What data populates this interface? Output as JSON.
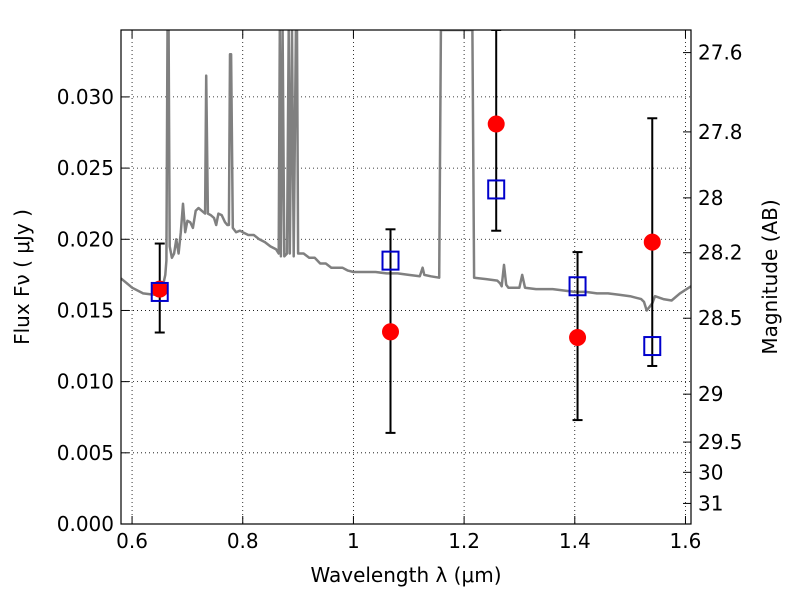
{
  "chart_data": {
    "type": "scatter",
    "xlabel": "Wavelength  λ (μm)",
    "ylabel_left": "Flux  Fν  ( μJy )",
    "ylabel_right": "Magnitude (AB)",
    "xlim": [
      0.58,
      1.61
    ],
    "ylim": [
      0.0,
      0.0347
    ],
    "grid": true,
    "x_ticks": [
      {
        "value": 0.6,
        "label": "0.6"
      },
      {
        "value": 0.8,
        "label": "0.8"
      },
      {
        "value": 1.0,
        "label": "1"
      },
      {
        "value": 1.2,
        "label": "1.2"
      },
      {
        "value": 1.4,
        "label": "1.4"
      },
      {
        "value": 1.6,
        "label": "1.6"
      }
    ],
    "y_ticks": [
      {
        "value": 0.0,
        "label": "0.000"
      },
      {
        "value": 0.005,
        "label": "0.005"
      },
      {
        "value": 0.01,
        "label": "0.010"
      },
      {
        "value": 0.015,
        "label": "0.015"
      },
      {
        "value": 0.02,
        "label": "0.020"
      },
      {
        "value": 0.025,
        "label": "0.025"
      },
      {
        "value": 0.03,
        "label": "0.030"
      }
    ],
    "y2_ticks": [
      {
        "value": 27.6,
        "label": "27.6"
      },
      {
        "value": 27.8,
        "label": "27.8"
      },
      {
        "value": 28.0,
        "label": "28"
      },
      {
        "value": 28.2,
        "label": "28.2"
      },
      {
        "value": 28.5,
        "label": "28.5"
      },
      {
        "value": 29.0,
        "label": "29"
      },
      {
        "value": 29.5,
        "label": "29.5"
      },
      {
        "value": 30.0,
        "label": "30"
      },
      {
        "value": 31.0,
        "label": "31"
      }
    ],
    "series": [
      {
        "type": "line",
        "color": "#808080",
        "points": [
          [
            0.58,
            0.01725
          ],
          [
            0.6,
            0.0166
          ],
          [
            0.62,
            0.0162
          ],
          [
            0.64,
            0.0161
          ],
          [
            0.65,
            0.0163
          ],
          [
            0.655,
            0.0166
          ],
          [
            0.66,
            0.0175
          ],
          [
            0.662,
            0.0185
          ],
          [
            0.664,
            0.0347
          ],
          [
            0.666,
            0.0347
          ],
          [
            0.668,
            0.0195
          ],
          [
            0.672,
            0.0187
          ],
          [
            0.676,
            0.019
          ],
          [
            0.68,
            0.02
          ],
          [
            0.684,
            0.019
          ],
          [
            0.688,
            0.0205
          ],
          [
            0.692,
            0.0225
          ],
          [
            0.696,
            0.0205
          ],
          [
            0.7,
            0.0213
          ],
          [
            0.705,
            0.0212
          ],
          [
            0.71,
            0.0208
          ],
          [
            0.715,
            0.022
          ],
          [
            0.72,
            0.0222
          ],
          [
            0.726,
            0.022
          ],
          [
            0.732,
            0.0218
          ],
          [
            0.734,
            0.0315
          ],
          [
            0.737,
            0.0218
          ],
          [
            0.742,
            0.0217
          ],
          [
            0.748,
            0.0215
          ],
          [
            0.752,
            0.021
          ],
          [
            0.756,
            0.0218
          ],
          [
            0.762,
            0.0217
          ],
          [
            0.768,
            0.0212
          ],
          [
            0.772,
            0.021
          ],
          [
            0.775,
            0.021
          ],
          [
            0.777,
            0.033
          ],
          [
            0.779,
            0.033
          ],
          [
            0.782,
            0.0208
          ],
          [
            0.788,
            0.0205
          ],
          [
            0.795,
            0.0206
          ],
          [
            0.8,
            0.0205
          ],
          [
            0.81,
            0.0203
          ],
          [
            0.82,
            0.0203
          ],
          [
            0.83,
            0.02
          ],
          [
            0.84,
            0.0198
          ],
          [
            0.85,
            0.0195
          ],
          [
            0.86,
            0.0193
          ],
          [
            0.865,
            0.019
          ],
          [
            0.867,
            0.0347
          ],
          [
            0.869,
            0.0188
          ],
          [
            0.872,
            0.0347
          ],
          [
            0.875,
            0.0188
          ],
          [
            0.88,
            0.019
          ],
          [
            0.883,
            0.0347
          ],
          [
            0.885,
            0.019
          ],
          [
            0.889,
            0.0347
          ],
          [
            0.892,
            0.0188
          ],
          [
            0.896,
            0.0347
          ],
          [
            0.898,
            0.0347
          ],
          [
            0.9,
            0.019
          ],
          [
            0.91,
            0.019
          ],
          [
            0.92,
            0.0187
          ],
          [
            0.93,
            0.0187
          ],
          [
            0.94,
            0.0183
          ],
          [
            0.95,
            0.0183
          ],
          [
            0.96,
            0.018
          ],
          [
            0.97,
            0.018
          ],
          [
            0.98,
            0.018
          ],
          [
            0.99,
            0.0178
          ],
          [
            1.0,
            0.0177
          ],
          [
            1.02,
            0.0177
          ],
          [
            1.04,
            0.0177
          ],
          [
            1.06,
            0.0176
          ],
          [
            1.08,
            0.0176
          ],
          [
            1.1,
            0.0175
          ],
          [
            1.12,
            0.0174
          ],
          [
            1.125,
            0.018
          ],
          [
            1.128,
            0.0175
          ],
          [
            1.14,
            0.0174
          ],
          [
            1.155,
            0.0173
          ],
          [
            1.158,
            0.0347
          ],
          [
            1.215,
            0.0347
          ],
          [
            1.218,
            0.0173
          ],
          [
            1.24,
            0.0172
          ],
          [
            1.26,
            0.0171
          ],
          [
            1.265,
            0.0169
          ],
          [
            1.268,
            0.0167
          ],
          [
            1.272,
            0.0182
          ],
          [
            1.276,
            0.0168
          ],
          [
            1.28,
            0.0166
          ],
          [
            1.3,
            0.0166
          ],
          [
            1.305,
            0.0175
          ],
          [
            1.31,
            0.0166
          ],
          [
            1.33,
            0.0165
          ],
          [
            1.36,
            0.0165
          ],
          [
            1.38,
            0.0164
          ],
          [
            1.4,
            0.0163
          ],
          [
            1.42,
            0.0163
          ],
          [
            1.44,
            0.0162
          ],
          [
            1.46,
            0.0162
          ],
          [
            1.48,
            0.0161
          ],
          [
            1.5,
            0.016
          ],
          [
            1.52,
            0.0158
          ],
          [
            1.525,
            0.0156
          ],
          [
            1.53,
            0.015
          ],
          [
            1.54,
            0.0155
          ],
          [
            1.545,
            0.016
          ],
          [
            1.56,
            0.0158
          ],
          [
            1.575,
            0.0157
          ],
          [
            1.59,
            0.0162
          ],
          [
            1.61,
            0.0167
          ]
        ]
      },
      {
        "type": "scatter",
        "marker": "circle",
        "color": "#ff0000",
        "points": [
          [
            0.65,
            0.0165
          ],
          [
            1.067,
            0.0135
          ],
          [
            1.258,
            0.0281
          ],
          [
            1.405,
            0.0131
          ],
          [
            1.54,
            0.0198
          ]
        ]
      },
      {
        "type": "scatter",
        "marker": "square-open",
        "color": "#0000cc",
        "points": [
          {
            "x": 0.65,
            "y": 0.0163,
            "ylo": 0.01345,
            "yhi": 0.0197
          },
          {
            "x": 1.067,
            "y": 0.0185,
            "ylo": 0.0064,
            "yhi": 0.0207
          },
          {
            "x": 1.258,
            "y": 0.0235,
            "ylo": 0.0206,
            "yhi": 0.0347
          },
          {
            "x": 1.405,
            "y": 0.0167,
            "ylo": 0.0073,
            "yhi": 0.0191
          },
          {
            "x": 1.54,
            "y": 0.0125,
            "ylo": 0.0111,
            "yhi": 0.0285
          }
        ]
      }
    ]
  }
}
